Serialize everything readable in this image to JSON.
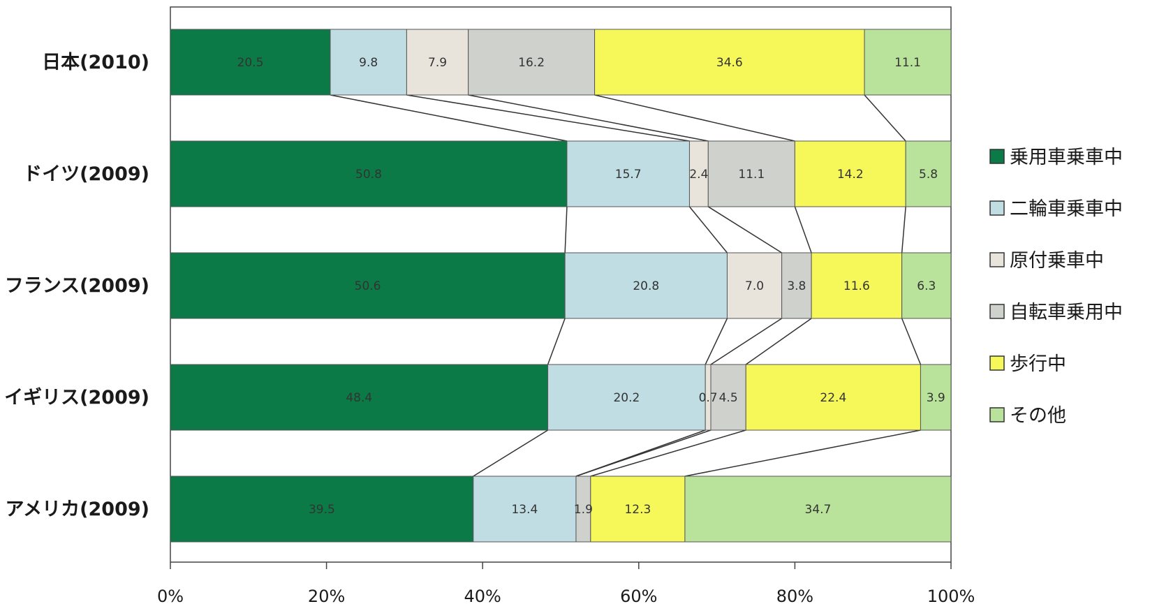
{
  "chart_data": {
    "type": "bar",
    "orientation": "horizontal",
    "stacked": "percent",
    "categories": [
      "日本(2010)",
      "ドイツ(2009)",
      "フランス(2009)",
      "イギリス(2009)",
      "アメリカ(2009)"
    ],
    "series": [
      {
        "name": "乗用車乗車中",
        "color": "#0b7a47",
        "values": [
          20.5,
          50.8,
          50.6,
          48.4,
          39.5
        ]
      },
      {
        "name": "二輪車乗車中",
        "color": "#bfdde3",
        "values": [
          9.8,
          15.7,
          20.8,
          20.2,
          13.4
        ]
      },
      {
        "name": "原付乗車中",
        "color": "#e8e4dc",
        "values": [
          7.9,
          2.4,
          7.0,
          0.7,
          0
        ]
      },
      {
        "name": "自転車乗用中",
        "color": "#cfd1cd",
        "values": [
          16.2,
          11.1,
          3.8,
          4.5,
          1.9
        ]
      },
      {
        "name": "歩行中",
        "color": "#f6f85a",
        "values": [
          34.6,
          14.2,
          11.6,
          22.4,
          12.3
        ]
      },
      {
        "name": "その他",
        "color": "#b9e29b",
        "values": [
          11.1,
          5.8,
          6.3,
          3.9,
          34.7
        ]
      }
    ],
    "data_labels": [
      [
        "20.5",
        "9.8",
        "7.9",
        "16.2",
        "34.6",
        "11.1"
      ],
      [
        "50.8",
        "15.7",
        "2.4",
        "11.1",
        "14.2",
        "5.8"
      ],
      [
        "50.6",
        "20.8",
        "7.0",
        "3.8",
        "11.6",
        "6.3"
      ],
      [
        "48.4",
        "20.2",
        "0.7",
        "4.5",
        "22.4",
        "3.9"
      ],
      [
        "39.5",
        "13.4",
        "",
        "1.9",
        "12.3",
        "34.7"
      ]
    ],
    "x_ticks": [
      "0%",
      "20%",
      "40%",
      "60%",
      "80%",
      "100%"
    ],
    "xlim": [
      0,
      100
    ],
    "grid": false,
    "legend_position": "right",
    "series_lines": true
  }
}
